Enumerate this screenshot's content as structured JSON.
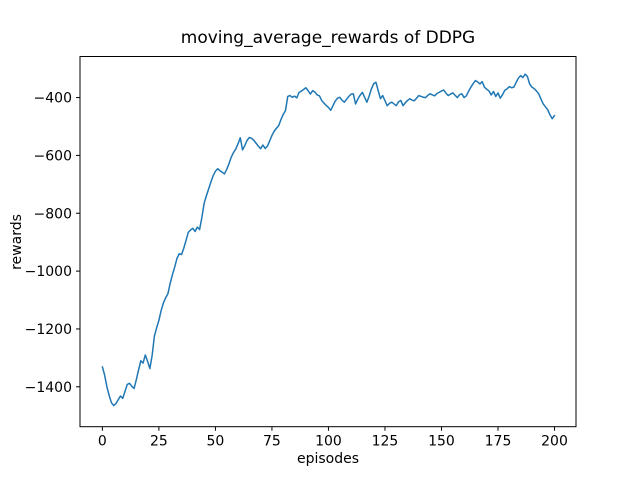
{
  "chart_data": {
    "type": "line",
    "title": "moving_average_rewards of DDPG",
    "xlabel": "episodes",
    "ylabel": "rewards",
    "line_color": "#1f77b4",
    "background_color": "#ffffff",
    "grid": false,
    "legend": null,
    "xlim": [
      -9.9,
      209.5
    ],
    "ylim": [
      -1538,
      -258
    ],
    "x_ticks": {
      "values": [
        0,
        25,
        50,
        75,
        100,
        125,
        150,
        175,
        200
      ],
      "labels": [
        "0",
        "25",
        "50",
        "75",
        "100",
        "125",
        "150",
        "175",
        "200"
      ]
    },
    "y_ticks": {
      "values": [
        -400,
        -600,
        -800,
        -1000,
        -1200,
        -1400
      ],
      "labels": [
        "−400",
        "−600",
        "−800",
        "−1000",
        "−1200",
        "−1400"
      ]
    },
    "series": [
      {
        "name": "moving_average_rewards",
        "points": [
          [
            0,
            -1331
          ],
          [
            1,
            -1360
          ],
          [
            2,
            -1400
          ],
          [
            3,
            -1430
          ],
          [
            4,
            -1455
          ],
          [
            5,
            -1465
          ],
          [
            6,
            -1458
          ],
          [
            7,
            -1445
          ],
          [
            8,
            -1432
          ],
          [
            9,
            -1440
          ],
          [
            10,
            -1416
          ],
          [
            11,
            -1392
          ],
          [
            12,
            -1388
          ],
          [
            13,
            -1398
          ],
          [
            14,
            -1406
          ],
          [
            15,
            -1376
          ],
          [
            16,
            -1342
          ],
          [
            17,
            -1310
          ],
          [
            18,
            -1318
          ],
          [
            19,
            -1290
          ],
          [
            20,
            -1312
          ],
          [
            21,
            -1337
          ],
          [
            22,
            -1292
          ],
          [
            23,
            -1225
          ],
          [
            24,
            -1196
          ],
          [
            25,
            -1170
          ],
          [
            26,
            -1136
          ],
          [
            27,
            -1110
          ],
          [
            28,
            -1092
          ],
          [
            29,
            -1078
          ],
          [
            30,
            -1042
          ],
          [
            31,
            -1012
          ],
          [
            32,
            -986
          ],
          [
            33,
            -956
          ],
          [
            34,
            -940
          ],
          [
            35,
            -943
          ],
          [
            36,
            -921
          ],
          [
            37,
            -894
          ],
          [
            38,
            -866
          ],
          [
            39,
            -858
          ],
          [
            40,
            -852
          ],
          [
            41,
            -863
          ],
          [
            42,
            -848
          ],
          [
            43,
            -856
          ],
          [
            44,
            -815
          ],
          [
            45,
            -766
          ],
          [
            46,
            -740
          ],
          [
            47,
            -716
          ],
          [
            48,
            -692
          ],
          [
            49,
            -670
          ],
          [
            50,
            -655
          ],
          [
            51,
            -646
          ],
          [
            52,
            -653
          ],
          [
            53,
            -658
          ],
          [
            54,
            -664
          ],
          [
            55,
            -648
          ],
          [
            56,
            -629
          ],
          [
            57,
            -606
          ],
          [
            58,
            -590
          ],
          [
            59,
            -578
          ],
          [
            60,
            -560
          ],
          [
            61,
            -539
          ],
          [
            62,
            -581
          ],
          [
            63,
            -566
          ],
          [
            64,
            -548
          ],
          [
            65,
            -538
          ],
          [
            66,
            -541
          ],
          [
            67,
            -548
          ],
          [
            68,
            -558
          ],
          [
            69,
            -568
          ],
          [
            70,
            -577
          ],
          [
            71,
            -564
          ],
          [
            72,
            -576
          ],
          [
            73,
            -568
          ],
          [
            74,
            -550
          ],
          [
            75,
            -531
          ],
          [
            76,
            -516
          ],
          [
            77,
            -506
          ],
          [
            78,
            -497
          ],
          [
            79,
            -476
          ],
          [
            80,
            -458
          ],
          [
            81,
            -445
          ],
          [
            82,
            -396
          ],
          [
            83,
            -393
          ],
          [
            84,
            -399
          ],
          [
            85,
            -395
          ],
          [
            86,
            -401
          ],
          [
            87,
            -382
          ],
          [
            88,
            -378
          ],
          [
            89,
            -372
          ],
          [
            90,
            -366
          ],
          [
            91,
            -376
          ],
          [
            92,
            -388
          ],
          [
            93,
            -376
          ],
          [
            94,
            -381
          ],
          [
            95,
            -391
          ],
          [
            96,
            -394
          ],
          [
            97,
            -410
          ],
          [
            98,
            -419
          ],
          [
            99,
            -427
          ],
          [
            100,
            -434
          ],
          [
            101,
            -444
          ],
          [
            102,
            -428
          ],
          [
            103,
            -412
          ],
          [
            104,
            -402
          ],
          [
            105,
            -399
          ],
          [
            106,
            -409
          ],
          [
            107,
            -416
          ],
          [
            108,
            -406
          ],
          [
            109,
            -396
          ],
          [
            110,
            -388
          ],
          [
            111,
            -387
          ],
          [
            112,
            -422
          ],
          [
            113,
            -405
          ],
          [
            114,
            -392
          ],
          [
            115,
            -382
          ],
          [
            116,
            -399
          ],
          [
            117,
            -416
          ],
          [
            118,
            -395
          ],
          [
            119,
            -370
          ],
          [
            120,
            -352
          ],
          [
            121,
            -347
          ],
          [
            122,
            -376
          ],
          [
            123,
            -404
          ],
          [
            124,
            -393
          ],
          [
            125,
            -411
          ],
          [
            126,
            -428
          ],
          [
            127,
            -420
          ],
          [
            128,
            -416
          ],
          [
            129,
            -422
          ],
          [
            130,
            -428
          ],
          [
            131,
            -415
          ],
          [
            132,
            -410
          ],
          [
            133,
            -428
          ],
          [
            134,
            -418
          ],
          [
            135,
            -410
          ],
          [
            136,
            -404
          ],
          [
            137,
            -409
          ],
          [
            138,
            -411
          ],
          [
            139,
            -402
          ],
          [
            140,
            -393
          ],
          [
            141,
            -396
          ],
          [
            142,
            -399
          ],
          [
            143,
            -400
          ],
          [
            144,
            -392
          ],
          [
            145,
            -387
          ],
          [
            146,
            -391
          ],
          [
            147,
            -394
          ],
          [
            148,
            -386
          ],
          [
            149,
            -382
          ],
          [
            150,
            -377
          ],
          [
            151,
            -374
          ],
          [
            152,
            -385
          ],
          [
            153,
            -393
          ],
          [
            154,
            -388
          ],
          [
            155,
            -384
          ],
          [
            156,
            -392
          ],
          [
            157,
            -400
          ],
          [
            158,
            -390
          ],
          [
            159,
            -387
          ],
          [
            160,
            -400
          ],
          [
            161,
            -394
          ],
          [
            162,
            -378
          ],
          [
            163,
            -364
          ],
          [
            164,
            -352
          ],
          [
            165,
            -341
          ],
          [
            166,
            -346
          ],
          [
            167,
            -353
          ],
          [
            168,
            -345
          ],
          [
            169,
            -364
          ],
          [
            170,
            -371
          ],
          [
            171,
            -377
          ],
          [
            172,
            -391
          ],
          [
            173,
            -379
          ],
          [
            174,
            -396
          ],
          [
            175,
            -384
          ],
          [
            176,
            -402
          ],
          [
            177,
            -390
          ],
          [
            178,
            -375
          ],
          [
            179,
            -370
          ],
          [
            180,
            -362
          ],
          [
            181,
            -366
          ],
          [
            182,
            -364
          ],
          [
            183,
            -348
          ],
          [
            184,
            -333
          ],
          [
            185,
            -324
          ],
          [
            186,
            -331
          ],
          [
            187,
            -319
          ],
          [
            188,
            -327
          ],
          [
            189,
            -353
          ],
          [
            190,
            -364
          ],
          [
            191,
            -369
          ],
          [
            192,
            -377
          ],
          [
            193,
            -387
          ],
          [
            194,
            -405
          ],
          [
            195,
            -422
          ],
          [
            196,
            -432
          ],
          [
            197,
            -442
          ],
          [
            198,
            -460
          ],
          [
            199,
            -473
          ],
          [
            200,
            -462
          ]
        ]
      }
    ]
  }
}
